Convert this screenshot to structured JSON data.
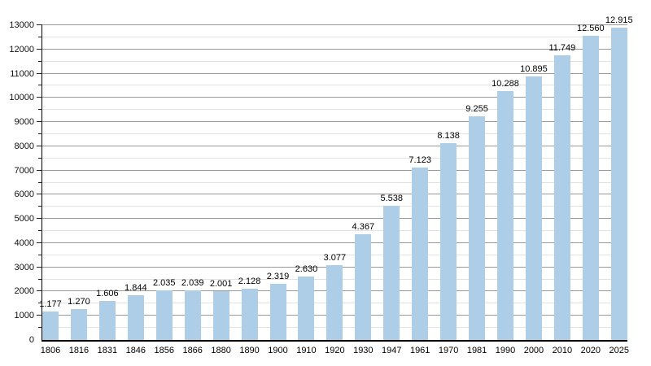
{
  "chart_data": {
    "type": "bar",
    "title": "",
    "xlabel": "",
    "ylabel": "",
    "categories": [
      "1806",
      "1816",
      "1831",
      "1846",
      "1856",
      "1866",
      "1880",
      "1890",
      "1900",
      "1910",
      "1920",
      "1930",
      "1947",
      "1961",
      "1970",
      "1981",
      "1990",
      "2000",
      "2010",
      "2020",
      "2025"
    ],
    "values": [
      1177,
      1270,
      1606,
      1844,
      2035,
      2039,
      2001,
      2128,
      2319,
      2630,
      3077,
      4367,
      5538,
      7123,
      8138,
      9255,
      10288,
      10895,
      11749,
      12560,
      12915
    ],
    "value_labels": [
      "1.177",
      "1.270",
      "1.606",
      "1.844",
      "2.035",
      "2.039",
      "2.001",
      "2.128",
      "2.319",
      "2.630",
      "3.077",
      "4.367",
      "5.538",
      "7.123",
      "8.138",
      "9.255",
      "10.288",
      "10.895",
      "11.749",
      "12.560",
      "12.915"
    ],
    "ylim": [
      0,
      13000
    ],
    "y_major_step": 1000,
    "y_minor_step": 500,
    "y_tick_labels": [
      "0",
      "1000",
      "2000",
      "3000",
      "4000",
      "5000",
      "6000",
      "7000",
      "8000",
      "9000",
      "10000",
      "11000",
      "12000",
      "13000"
    ],
    "grid": true,
    "legend_position": "none",
    "bar_color": "#aecde6",
    "axis_color": "#000000",
    "major_grid_color": "#9a9a9a",
    "minor_grid_color": "#e2e2e2",
    "label_color": "#000000"
  }
}
